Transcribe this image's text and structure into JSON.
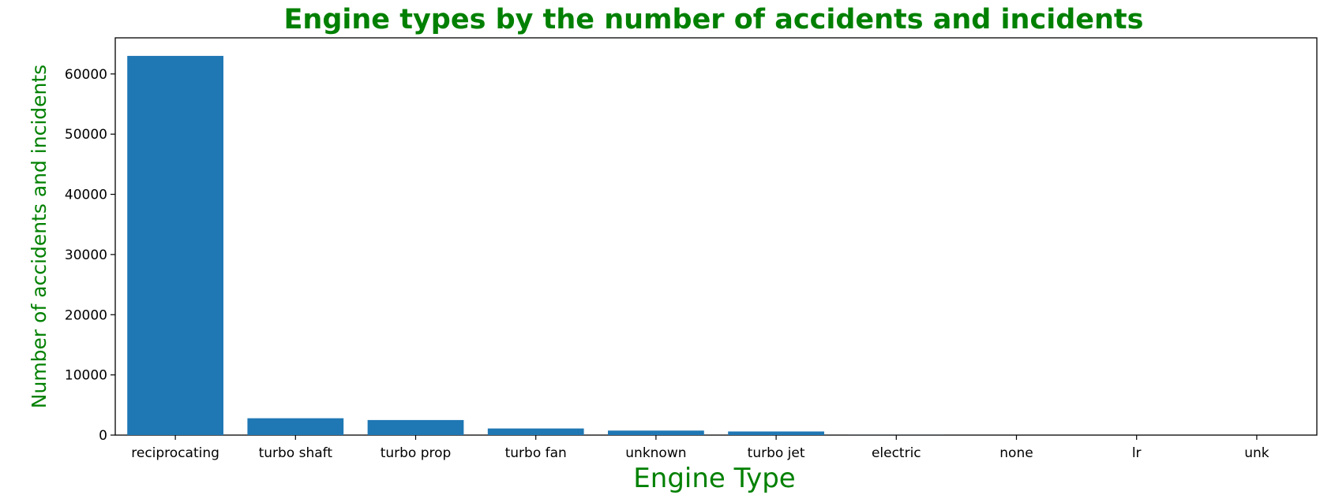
{
  "chart_data": {
    "type": "bar",
    "title": "Engine types by the number of accidents and incidents",
    "xlabel": "Engine Type",
    "ylabel": "Number of accidents and incidents",
    "categories": [
      "reciprocating",
      "turbo shaft",
      "turbo prop",
      "turbo fan",
      "unknown",
      "turbo jet",
      "electric",
      "none",
      "lr",
      "unk"
    ],
    "values": [
      63000,
      2800,
      2500,
      1100,
      750,
      600,
      10,
      2,
      2,
      1
    ],
    "ylim": [
      0,
      66000
    ],
    "yticks": [
      0,
      10000,
      20000,
      30000,
      40000,
      50000,
      60000
    ],
    "grid": false,
    "legend": "none",
    "colors": {
      "bar": "#1f77b4",
      "title": "#008000",
      "axis_labels": "#008000"
    }
  }
}
